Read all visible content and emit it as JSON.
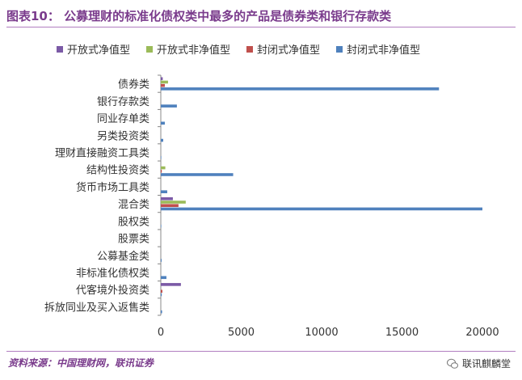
{
  "header": {
    "title": "图表10： 公募理财的标准化债权类中最多的产品是债券类和银行存款类"
  },
  "footer": {
    "source": "资料来源：中国理财网，联讯证券",
    "brand": "联讯麒麟堂",
    "brand_icon": "wechat-icon"
  },
  "colors": {
    "title": "#7a3b8c",
    "rule": "#b27ec0"
  },
  "chart_data": {
    "type": "bar",
    "orientation": "horizontal",
    "title": "",
    "xlabel": "",
    "ylabel": "",
    "xlim": [
      0,
      20000
    ],
    "x_ticks": [
      0,
      5000,
      10000,
      15000,
      20000
    ],
    "grid": false,
    "legend_position": "top",
    "categories": [
      "债券类",
      "银行存款类",
      "同业存单类",
      "另类投资类",
      "理财直接融资工具类",
      "结构性投资类",
      "货币市场工具类",
      "混合类",
      "股权类",
      "股票类",
      "公募基金类",
      "非标准化债权类",
      "代客境外投资类",
      "拆放同业及买入返售类"
    ],
    "series": [
      {
        "name": "开放式净值型",
        "color": "#7b5aa6",
        "values": [
          120,
          0,
          0,
          0,
          0,
          0,
          0,
          750,
          0,
          0,
          0,
          0,
          1250,
          0
        ]
      },
      {
        "name": "开放式非净值型",
        "color": "#9bbb59",
        "values": [
          450,
          0,
          0,
          0,
          0,
          280,
          0,
          1550,
          0,
          0,
          0,
          0,
          0,
          0
        ]
      },
      {
        "name": "封闭式净值型",
        "color": "#c0504d",
        "values": [
          250,
          0,
          0,
          0,
          0,
          60,
          0,
          1100,
          0,
          0,
          0,
          0,
          100,
          0
        ]
      },
      {
        "name": "封闭式非净值型",
        "color": "#4f81bd",
        "values": [
          17300,
          1000,
          250,
          150,
          30,
          4500,
          400,
          20000,
          30,
          0,
          50,
          350,
          60,
          80
        ]
      }
    ]
  }
}
